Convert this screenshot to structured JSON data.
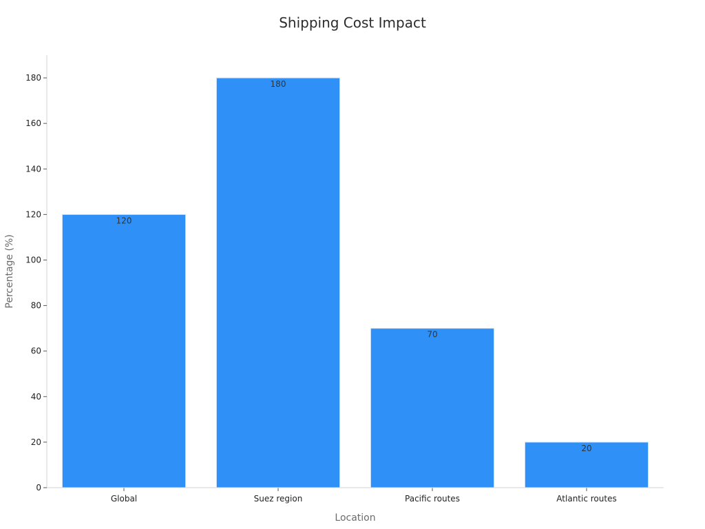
{
  "chart_data": {
    "type": "bar",
    "title": "Shipping Cost Impact",
    "xlabel": "Location",
    "ylabel": "Percentage (%)",
    "categories": [
      "Global",
      "Suez region",
      "Pacific routes",
      "Atlantic routes"
    ],
    "values": [
      120,
      180,
      70,
      20
    ],
    "data_labels": [
      "120",
      "180",
      "70",
      "20"
    ],
    "yticks": [
      0,
      20,
      40,
      60,
      80,
      100,
      120,
      140,
      160,
      180
    ],
    "ylim": [
      0,
      190
    ],
    "grid": false,
    "bar_color": "#2f91f7",
    "bar_edge_color": "#d9e6f5"
  }
}
